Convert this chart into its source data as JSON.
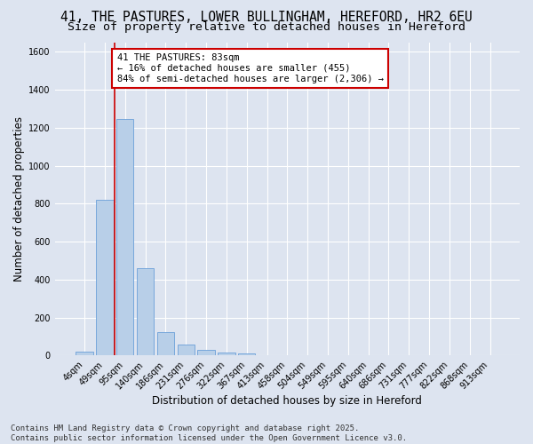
{
  "title_line1": "41, THE PASTURES, LOWER BULLINGHAM, HEREFORD, HR2 6EU",
  "title_line2": "Size of property relative to detached houses in Hereford",
  "xlabel": "Distribution of detached houses by size in Hereford",
  "ylabel": "Number of detached properties",
  "categories": [
    "4sqm",
    "49sqm",
    "95sqm",
    "140sqm",
    "186sqm",
    "231sqm",
    "276sqm",
    "322sqm",
    "367sqm",
    "413sqm",
    "458sqm",
    "504sqm",
    "549sqm",
    "595sqm",
    "640sqm",
    "686sqm",
    "731sqm",
    "777sqm",
    "822sqm",
    "868sqm",
    "913sqm"
  ],
  "values": [
    22,
    820,
    1245,
    460,
    125,
    58,
    28,
    18,
    10,
    0,
    0,
    0,
    0,
    0,
    0,
    0,
    0,
    0,
    0,
    0,
    0
  ],
  "bar_color": "#b8cfe8",
  "bar_edgecolor": "#6a9fd8",
  "vline_color": "#cc0000",
  "vline_x_index": 1.5,
  "annotation_text": "41 THE PASTURES: 83sqm\n← 16% of detached houses are smaller (455)\n84% of semi-detached houses are larger (2,306) →",
  "annotation_box_facecolor": "#ffffff",
  "annotation_box_edgecolor": "#cc0000",
  "ylim": [
    0,
    1650
  ],
  "yticks": [
    0,
    200,
    400,
    600,
    800,
    1000,
    1200,
    1400,
    1600
  ],
  "background_color": "#dde4f0",
  "grid_color": "#ffffff",
  "footer_line1": "Contains HM Land Registry data © Crown copyright and database right 2025.",
  "footer_line2": "Contains public sector information licensed under the Open Government Licence v3.0.",
  "title_fontsize": 10.5,
  "subtitle_fontsize": 9.5,
  "axis_label_fontsize": 8.5,
  "tick_fontsize": 7,
  "annotation_fontsize": 7.5,
  "footer_fontsize": 6.5
}
